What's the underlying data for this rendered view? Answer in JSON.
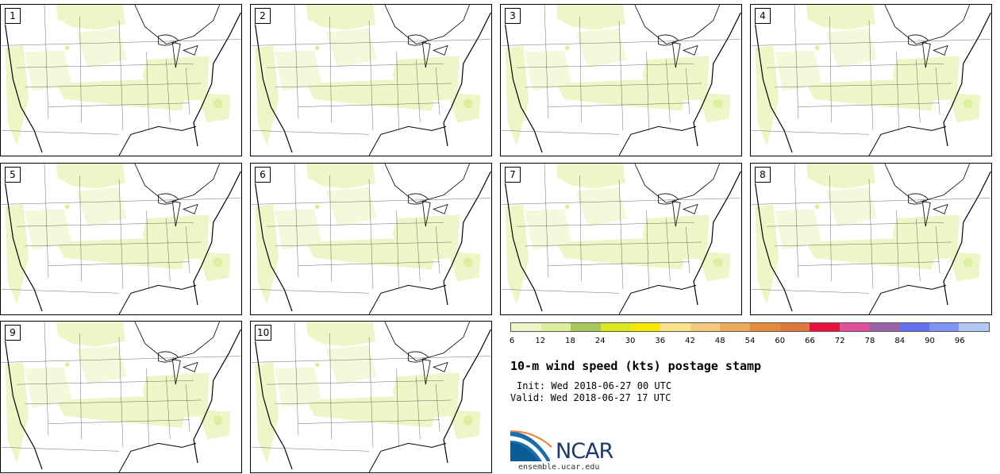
{
  "panels": [
    {
      "label": "1"
    },
    {
      "label": "2"
    },
    {
      "label": "3"
    },
    {
      "label": "4"
    },
    {
      "label": "5"
    },
    {
      "label": "6"
    },
    {
      "label": "7"
    },
    {
      "label": "8"
    },
    {
      "label": "9"
    },
    {
      "label": "10"
    }
  ],
  "legend": {
    "colors": [
      "#eef6c8",
      "#dcef9c",
      "#a8c85a",
      "#dbe81e",
      "#f6ea04",
      "#fbe388",
      "#f5c97e",
      "#ebaa58",
      "#e48c3c",
      "#dc7838",
      "#e8103c",
      "#e05098",
      "#9c64a8",
      "#6470f0",
      "#7c94f4",
      "#b4c8f8"
    ],
    "ticks": [
      "6",
      "12",
      "18",
      "24",
      "30",
      "36",
      "42",
      "48",
      "54",
      "60",
      "66",
      "72",
      "78",
      "84",
      "90",
      "96"
    ]
  },
  "title": "10-m wind speed (kts) postage stamp",
  "init": "Init: Wed 2018-06-27 00 UTC",
  "valid": "Valid: Wed 2018-06-27 17 UTC",
  "logo": {
    "text": "NCAR"
  },
  "site": "ensemble.ucar.edu"
}
